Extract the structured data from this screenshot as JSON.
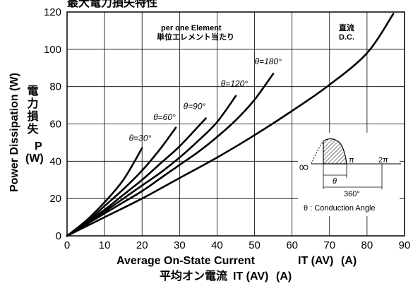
{
  "chart_data": {
    "type": "line",
    "title": "最大電力損失特性",
    "xlabel": "Average On-State Current",
    "xlabel_symbol": "IT (AV)",
    "xlabel_unit": "(A)",
    "xlabel_jp": "平均オン電流",
    "ylabel": "Power Dissipation (W)",
    "ylabel_jp": "電力損失",
    "ylabel_jp_symbol": "P",
    "ylabel_jp_unit": "(W)",
    "xlim": [
      0,
      90
    ],
    "ylim": [
      0,
      120
    ],
    "xticks": [
      "0",
      "10",
      "20",
      "30",
      "40",
      "50",
      "60",
      "70",
      "80",
      "90"
    ],
    "yticks": [
      "0",
      "20",
      "40",
      "60",
      "80",
      "100",
      "120"
    ],
    "grid": true,
    "annotations": {
      "element_en": "per one Element",
      "element_jp": "単位エレメント当たり",
      "dc_jp": "直流",
      "dc_en": "D.C."
    },
    "inset": {
      "zero_label": "0",
      "pi_label": "π",
      "two_pi_label": "2π",
      "theta_label": "θ",
      "period_label": "360°",
      "legend": "θ : Conduction Angle"
    },
    "series": [
      {
        "name": "θ=30°",
        "x": [
          0,
          5,
          10,
          15,
          20
        ],
        "y": [
          0,
          8,
          18,
          30,
          47
        ],
        "label_x": 16.5,
        "label_y": 51
      },
      {
        "name": "θ=60°",
        "x": [
          0,
          5,
          10,
          15,
          20,
          25,
          29
        ],
        "y": [
          0,
          7,
          16,
          25,
          35,
          47,
          58
        ],
        "label_x": 23,
        "label_y": 62
      },
      {
        "name": "θ=90°",
        "x": [
          0,
          5,
          10,
          15,
          20,
          25,
          30,
          37
        ],
        "y": [
          0,
          7,
          14,
          22,
          30,
          39,
          48,
          63
        ],
        "label_x": 31,
        "label_y": 68
      },
      {
        "name": "θ=120°",
        "x": [
          0,
          5,
          10,
          15,
          20,
          25,
          30,
          35,
          40,
          45
        ],
        "y": [
          0,
          6,
          13,
          20,
          27,
          34,
          42,
          51,
          61,
          75
        ],
        "label_x": 41,
        "label_y": 80
      },
      {
        "name": "θ=180°",
        "x": [
          0,
          5,
          10,
          15,
          20,
          25,
          30,
          35,
          40,
          45,
          50,
          55
        ],
        "y": [
          0,
          6,
          12,
          18,
          24,
          31,
          38,
          45,
          53,
          62,
          73,
          87
        ],
        "label_x": 50,
        "label_y": 92
      },
      {
        "name": "D.C.",
        "x": [
          0,
          10,
          20,
          30,
          40,
          50,
          60,
          70,
          80,
          87
        ],
        "y": [
          0,
          10,
          20,
          31,
          42,
          54,
          67,
          81,
          98,
          119
        ]
      }
    ]
  }
}
